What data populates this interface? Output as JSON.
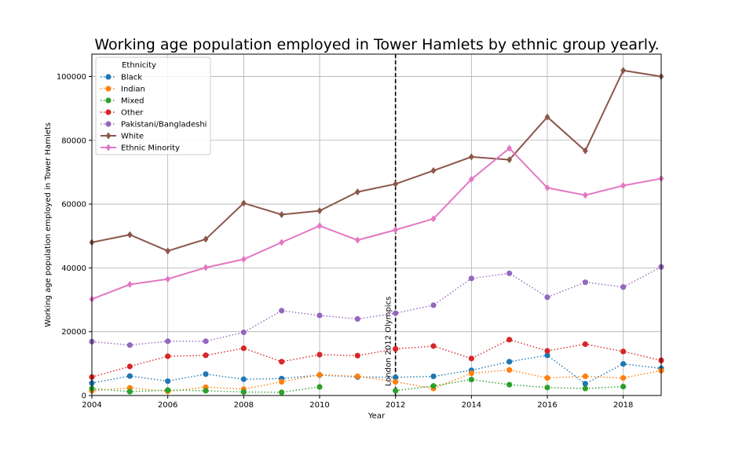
{
  "chart_data": {
    "type": "line",
    "title": "Working age population employed in Tower Hamlets by ethnic group yearly.",
    "xlabel": "Year",
    "ylabel": "Working age population employed in Tower Hamlets",
    "xlim": [
      2004,
      2019
    ],
    "ylim": [
      0,
      107000
    ],
    "xticks": [
      2004,
      2006,
      2008,
      2010,
      2012,
      2014,
      2016,
      2018
    ],
    "yticks": [
      0,
      20000,
      40000,
      60000,
      80000,
      100000
    ],
    "grid": true,
    "legend": {
      "title": "Ethnicity",
      "placement": "top-left"
    },
    "annotation": {
      "text": "London 2012 Olympics",
      "x": 2012
    },
    "x": [
      2004,
      2005,
      2006,
      2007,
      2008,
      2009,
      2010,
      2011,
      2012,
      2013,
      2014,
      2015,
      2016,
      2017,
      2018,
      2019
    ],
    "series": [
      {
        "name": "Black",
        "color": "#1f77b4",
        "style": "dotted",
        "marker": "circle",
        "values": [
          3900,
          6100,
          4500,
          6700,
          5100,
          5300,
          6400,
          5800,
          5700,
          6000,
          7900,
          10600,
          12600,
          3700,
          9900,
          8500
        ]
      },
      {
        "name": "Indian",
        "color": "#ff7f0e",
        "style": "dotted",
        "marker": "circle",
        "values": [
          1500,
          2400,
          1300,
          2600,
          2000,
          4300,
          6500,
          6000,
          4300,
          2200,
          7000,
          8000,
          5500,
          6000,
          5500,
          7800
        ]
      },
      {
        "name": "Mixed",
        "color": "#2ca02c",
        "style": "dotted",
        "marker": "circle",
        "values": [
          2200,
          1200,
          1700,
          1500,
          1100,
          1000,
          2700,
          null,
          1500,
          3000,
          5000,
          3400,
          2500,
          2200,
          2800,
          null
        ]
      },
      {
        "name": "Other",
        "color": "#d62728",
        "style": "dotted",
        "marker": "circle",
        "values": [
          5800,
          9100,
          12300,
          12600,
          14800,
          10600,
          12800,
          12500,
          14600,
          15500,
          11600,
          17500,
          14000,
          16100,
          13800,
          11000
        ]
      },
      {
        "name": "Pakistani/Bangladeshi",
        "color": "#9467bd",
        "style": "dotted",
        "marker": "circle",
        "values": [
          16900,
          15800,
          17000,
          17000,
          19800,
          26600,
          25100,
          24000,
          25800,
          28300,
          36700,
          38300,
          30800,
          35500,
          34000,
          40300
        ]
      },
      {
        "name": "White",
        "color": "#8c564b",
        "style": "solid",
        "marker": "diamond",
        "values": [
          48000,
          50400,
          45300,
          49000,
          60300,
          56700,
          57900,
          63800,
          66300,
          70500,
          74800,
          73900,
          87300,
          76700,
          101900,
          100000
        ]
      },
      {
        "name": "Ethnic Minority",
        "color": "#e377c2",
        "style": "solid",
        "marker": "diamond",
        "values": [
          30200,
          34800,
          36500,
          40100,
          42700,
          48000,
          53200,
          48700,
          51900,
          55400,
          67800,
          77500,
          65100,
          62800,
          65800,
          68000
        ]
      }
    ]
  }
}
